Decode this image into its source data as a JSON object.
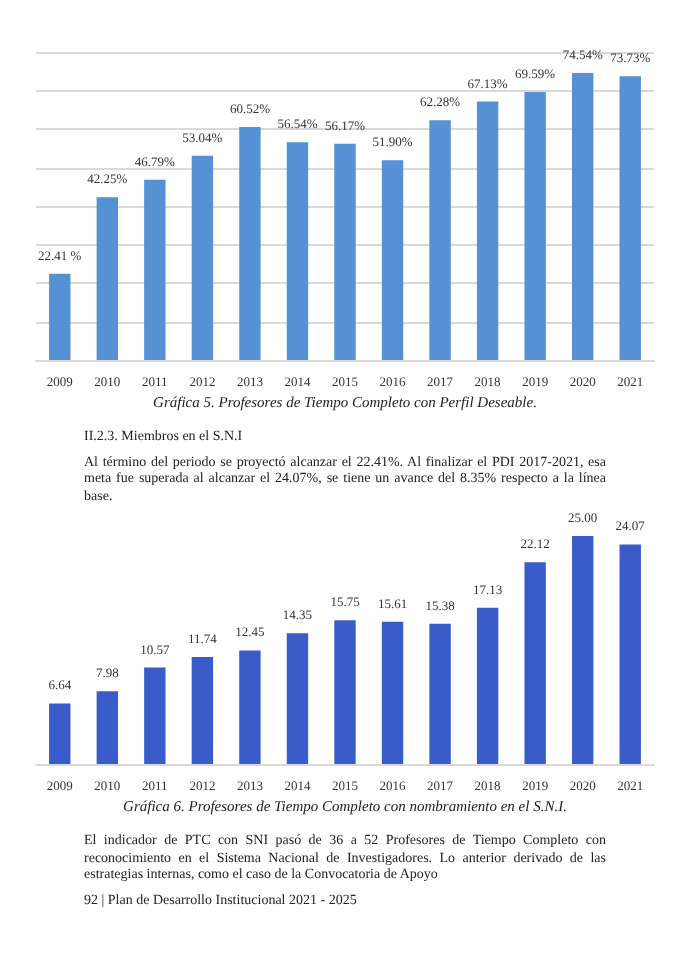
{
  "chart_data": [
    {
      "type": "bar",
      "title": "Gráfica 5. Profesores de Tiempo Completo con Perfil Deseable.",
      "categories": [
        "2009",
        "2010",
        "2011",
        "2012",
        "2013",
        "2014",
        "2015",
        "2016",
        "2017",
        "2018",
        "2019",
        "2020",
        "2021"
      ],
      "values": [
        22.41,
        42.25,
        46.79,
        53.04,
        60.52,
        56.54,
        56.17,
        51.9,
        62.28,
        67.13,
        69.59,
        74.54,
        73.73
      ],
      "value_labels": [
        "22.41 %",
        "42.25%",
        "46.79%",
        "53.04%",
        "60.52%",
        "56.54%",
        "56.17%",
        "51.90%",
        "62.28%",
        "67.13%",
        "69.59%",
        "74.54%",
        "73.73%"
      ],
      "color": "#5591d3",
      "ylim": [
        0,
        80
      ],
      "yticks": [
        0,
        10,
        20,
        30,
        40,
        50,
        60,
        70,
        80
      ],
      "grid": "y",
      "tick_labels": "x",
      "annotations": [
        "II.2.3. Miembros en el S.N.I",
        "Al término del periodo se proyectó alcanzar el 22.41%. Al finalizar el PDI 2017-2021, esa meta fue superada al alcanzar el 24.07%, se tiene un avance del 8.35% respecto a la línea base."
      ]
    },
    {
      "type": "bar",
      "title": "Gráfica 6. Profesores de Tiempo Completo con nombramiento en el S.N.I.",
      "categories": [
        "2009",
        "2010",
        "2011",
        "2012",
        "2013",
        "2014",
        "2015",
        "2016",
        "2017",
        "2018",
        "2019",
        "2020",
        "2021"
      ],
      "values": [
        6.64,
        7.98,
        10.57,
        11.74,
        12.45,
        14.35,
        15.75,
        15.61,
        15.38,
        17.13,
        22.12,
        25.0,
        24.07
      ],
      "value_labels": [
        "6.64",
        "7.98",
        "10.57",
        "11.74",
        "12.45",
        "14.35",
        "15.75",
        "15.61",
        "15.38",
        "17.13",
        "22.12",
        "25.00",
        "24.07"
      ],
      "color": "#3a5cc8",
      "tick_labels": "x",
      "annotations": [
        "El indicador de PTC con SNI pasó de 36 a 52 Profesores de Tiempo Completo con reconocimiento en el Sistema Nacional de Investigadores. Lo anterior derivado de las estrategias internas, como el caso de la Convocatoria de Apoyo",
        "92 | Plan de Desarrollo Institucional 2021 - 2025"
      ]
    }
  ]
}
